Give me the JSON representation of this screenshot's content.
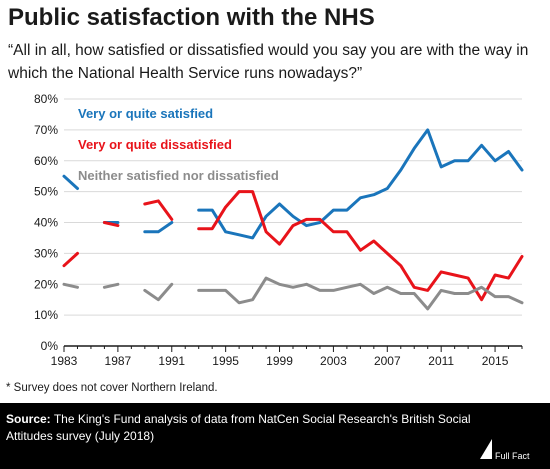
{
  "header": {
    "title": "Public satisfaction with the NHS",
    "subtitle": "“All in all, how satisfied or dissatisfied would you say you are with the way in which the National Health Service runs nowadays?”"
  },
  "footnote": "* Survey does not cover Northern Ireland.",
  "source": {
    "label": "Source:",
    "text": "The King's Fund analysis of data from NatCen Social Research's British Social Attitudes survey (July 2018)"
  },
  "logo": {
    "text": "Full Fact"
  },
  "colors": {
    "satisfied": "#1a75bb",
    "dissatisfied": "#e8131a",
    "neither": "#8c8c8c",
    "grid": "#d9d9d9",
    "axis": "#1a1a1a"
  },
  "chart_data": {
    "type": "line",
    "title": "Public satisfaction with the NHS",
    "xlim": [
      1983,
      2017
    ],
    "ylim": [
      0,
      80
    ],
    "x_ticks": [
      1983,
      1987,
      1991,
      1995,
      1999,
      2003,
      2007,
      2011,
      2015
    ],
    "x_tick_labels": [
      "1983",
      "1987",
      "1991",
      "1995",
      "1999",
      "2003",
      "2007",
      "2011",
      "2015"
    ],
    "y_ticks": [
      0,
      10,
      20,
      30,
      40,
      50,
      60,
      70,
      80
    ],
    "y_tick_labels": [
      "0%",
      "10%",
      "20%",
      "30%",
      "40%",
      "50%",
      "60%",
      "70%",
      "80%"
    ],
    "grid": "horizontal",
    "legend": "top-left, inline labels",
    "series": [
      {
        "name": "Very or quite satisfied",
        "color_key": "satisfied",
        "points": [
          [
            1983,
            55
          ],
          [
            1984,
            51
          ],
          null,
          [
            1986,
            40
          ],
          [
            1987,
            40
          ],
          null,
          [
            1989,
            37
          ],
          [
            1990,
            37
          ],
          [
            1991,
            40
          ],
          null,
          [
            1993,
            44
          ],
          [
            1994,
            44
          ],
          [
            1995,
            37
          ],
          [
            1996,
            36
          ],
          [
            1997,
            35
          ],
          [
            1998,
            42
          ],
          [
            1999,
            46
          ],
          [
            2000,
            42
          ],
          [
            2001,
            39
          ],
          [
            2002,
            40
          ],
          [
            2003,
            44
          ],
          [
            2004,
            44
          ],
          [
            2005,
            48
          ],
          [
            2006,
            49
          ],
          [
            2007,
            51
          ],
          [
            2008,
            57
          ],
          [
            2009,
            64
          ],
          [
            2010,
            70
          ],
          [
            2011,
            58
          ],
          [
            2012,
            60
          ],
          [
            2013,
            60
          ],
          [
            2014,
            65
          ],
          [
            2015,
            60
          ],
          [
            2016,
            63
          ],
          [
            2017,
            57
          ]
        ]
      },
      {
        "name": "Very or quite dissatisfied",
        "color_key": "dissatisfied",
        "points": [
          [
            1983,
            26
          ],
          [
            1984,
            30
          ],
          null,
          [
            1986,
            40
          ],
          [
            1987,
            39
          ],
          null,
          [
            1989,
            46
          ],
          [
            1990,
            47
          ],
          [
            1991,
            41
          ],
          null,
          [
            1993,
            38
          ],
          [
            1994,
            38
          ],
          [
            1995,
            45
          ],
          [
            1996,
            50
          ],
          [
            1997,
            50
          ],
          [
            1998,
            37
          ],
          [
            1999,
            33
          ],
          [
            2000,
            39
          ],
          [
            2001,
            41
          ],
          [
            2002,
            41
          ],
          [
            2003,
            37
          ],
          [
            2004,
            37
          ],
          [
            2005,
            31
          ],
          [
            2006,
            34
          ],
          [
            2007,
            30
          ],
          [
            2008,
            26
          ],
          [
            2009,
            19
          ],
          [
            2010,
            18
          ],
          [
            2011,
            24
          ],
          [
            2012,
            23
          ],
          [
            2013,
            22
          ],
          [
            2014,
            15
          ],
          [
            2015,
            23
          ],
          [
            2016,
            22
          ],
          [
            2017,
            29
          ]
        ]
      },
      {
        "name": "Neither satisfied nor dissatisfied",
        "color_key": "neither",
        "points": [
          [
            1983,
            20
          ],
          [
            1984,
            19
          ],
          null,
          [
            1986,
            19
          ],
          [
            1987,
            20
          ],
          null,
          [
            1989,
            18
          ],
          [
            1990,
            15
          ],
          [
            1991,
            20
          ],
          null,
          [
            1993,
            18
          ],
          [
            1994,
            18
          ],
          [
            1995,
            18
          ],
          [
            1996,
            14
          ],
          [
            1997,
            15
          ],
          [
            1998,
            22
          ],
          [
            1999,
            20
          ],
          [
            2000,
            19
          ],
          [
            2001,
            20
          ],
          [
            2002,
            18
          ],
          [
            2003,
            18
          ],
          [
            2004,
            19
          ],
          [
            2005,
            20
          ],
          [
            2006,
            17
          ],
          [
            2007,
            19
          ],
          [
            2008,
            17
          ],
          [
            2009,
            17
          ],
          [
            2010,
            12
          ],
          [
            2011,
            18
          ],
          [
            2012,
            17
          ],
          [
            2013,
            17
          ],
          [
            2014,
            19
          ],
          [
            2015,
            16
          ],
          [
            2016,
            16
          ],
          [
            2017,
            14
          ]
        ]
      }
    ],
    "legend_labels": [
      {
        "text": "Very or quite satisfied",
        "color_key": "satisfied"
      },
      {
        "text": "Very or quite dissatisfied",
        "color_key": "dissatisfied"
      },
      {
        "text": "Neither satisfied nor dissatisfied",
        "color_key": "neither"
      }
    ]
  }
}
